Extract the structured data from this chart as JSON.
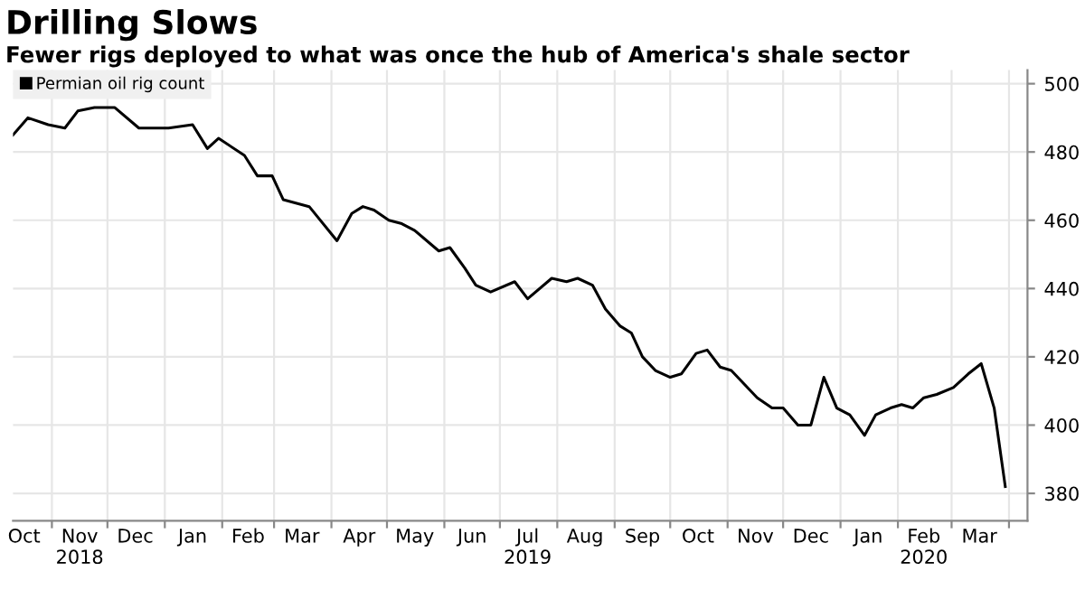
{
  "chart_data": {
    "type": "line",
    "title": "Drilling Slows",
    "subtitle": "Fewer rigs deployed to what was once the hub of America's shale sector",
    "x": [
      "2018-10-11",
      "2018-10-19",
      "2018-10-30",
      "2018-11-08",
      "2018-11-15",
      "2018-11-24",
      "2018-12-05",
      "2018-12-18",
      "2019-01-03",
      "2019-01-16",
      "2019-01-24",
      "2019-01-30",
      "2019-02-13",
      "2019-02-20",
      "2019-02-28",
      "2019-03-06",
      "2019-03-20",
      "2019-04-04",
      "2019-04-12",
      "2019-04-18",
      "2019-04-24",
      "2019-05-02",
      "2019-05-09",
      "2019-05-16",
      "2019-05-29",
      "2019-06-04",
      "2019-06-12",
      "2019-06-18",
      "2019-06-26",
      "2019-07-09",
      "2019-07-16",
      "2019-07-29",
      "2019-08-06",
      "2019-08-12",
      "2019-08-20",
      "2019-08-27",
      "2019-09-04",
      "2019-09-10",
      "2019-09-16",
      "2019-09-23",
      "2019-10-01",
      "2019-10-07",
      "2019-10-15",
      "2019-10-21",
      "2019-10-28",
      "2019-11-03",
      "2019-11-17",
      "2019-11-25",
      "2019-12-01",
      "2019-12-09",
      "2019-12-16",
      "2019-12-23",
      "2019-12-30",
      "2020-01-06",
      "2020-01-14",
      "2020-01-20",
      "2020-01-28",
      "2020-02-03",
      "2020-02-09",
      "2020-02-15",
      "2020-02-22",
      "2020-03-02",
      "2020-03-10",
      "2020-03-17",
      "2020-03-24",
      "2020-03-30"
    ],
    "series": [
      {
        "name": "Permian oil rig count",
        "color": "#000000",
        "values": [
          485,
          490,
          488,
          487,
          492,
          493,
          493,
          487,
          487,
          488,
          481,
          484,
          479,
          473,
          473,
          466,
          464,
          454,
          462,
          464,
          463,
          460,
          459,
          457,
          451,
          452,
          446,
          441,
          439,
          442,
          437,
          443,
          442,
          443,
          441,
          434,
          429,
          427,
          420,
          416,
          414,
          415,
          421,
          422,
          417,
          416,
          408,
          405,
          405,
          400,
          400,
          414,
          405,
          403,
          397,
          403,
          405,
          406,
          405,
          408,
          409,
          411,
          415,
          418,
          405,
          382
        ]
      }
    ],
    "xlim": [
      "2018-10-11",
      "2020-04-11"
    ],
    "xticks": [
      {
        "value": "2018-10-17",
        "label": "Oct"
      },
      {
        "value": "2018-11-01",
        "label": null
      },
      {
        "value": "2018-11-16",
        "label": "Nov\n2018"
      },
      {
        "value": "2018-12-01",
        "label": null
      },
      {
        "value": "2018-12-16",
        "label": "Dec"
      },
      {
        "value": "2019-01-01",
        "label": null
      },
      {
        "value": "2019-01-16",
        "label": "Jan"
      },
      {
        "value": "2019-02-01",
        "label": null
      },
      {
        "value": "2019-02-15",
        "label": "Feb"
      },
      {
        "value": "2019-03-01",
        "label": null
      },
      {
        "value": "2019-03-16",
        "label": "Mar"
      },
      {
        "value": "2019-04-01",
        "label": null
      },
      {
        "value": "2019-04-16",
        "label": "Apr"
      },
      {
        "value": "2019-05-01",
        "label": null
      },
      {
        "value": "2019-05-16",
        "label": "May"
      },
      {
        "value": "2019-06-01",
        "label": null
      },
      {
        "value": "2019-06-16",
        "label": "Jun"
      },
      {
        "value": "2019-07-01",
        "label": null
      },
      {
        "value": "2019-07-16",
        "label": "Jul\n2019"
      },
      {
        "value": "2019-08-01",
        "label": null
      },
      {
        "value": "2019-08-16",
        "label": "Aug"
      },
      {
        "value": "2019-09-01",
        "label": null
      },
      {
        "value": "2019-09-16",
        "label": "Sep"
      },
      {
        "value": "2019-10-01",
        "label": null
      },
      {
        "value": "2019-10-16",
        "label": "Oct"
      },
      {
        "value": "2019-11-01",
        "label": null
      },
      {
        "value": "2019-11-16",
        "label": "Nov"
      },
      {
        "value": "2019-12-01",
        "label": null
      },
      {
        "value": "2019-12-16",
        "label": "Dec"
      },
      {
        "value": "2020-01-01",
        "label": null
      },
      {
        "value": "2020-01-16",
        "label": "Jan"
      },
      {
        "value": "2020-02-01",
        "label": null
      },
      {
        "value": "2020-02-15",
        "label": "Feb\n2020"
      },
      {
        "value": "2020-03-01",
        "label": null
      },
      {
        "value": "2020-03-16",
        "label": "Mar"
      },
      {
        "value": "2020-04-01",
        "label": null
      }
    ],
    "ylim": [
      372,
      504
    ],
    "yticks": [
      380,
      400,
      420,
      440,
      460,
      480,
      500
    ],
    "grid": true,
    "legend": "top left"
  }
}
